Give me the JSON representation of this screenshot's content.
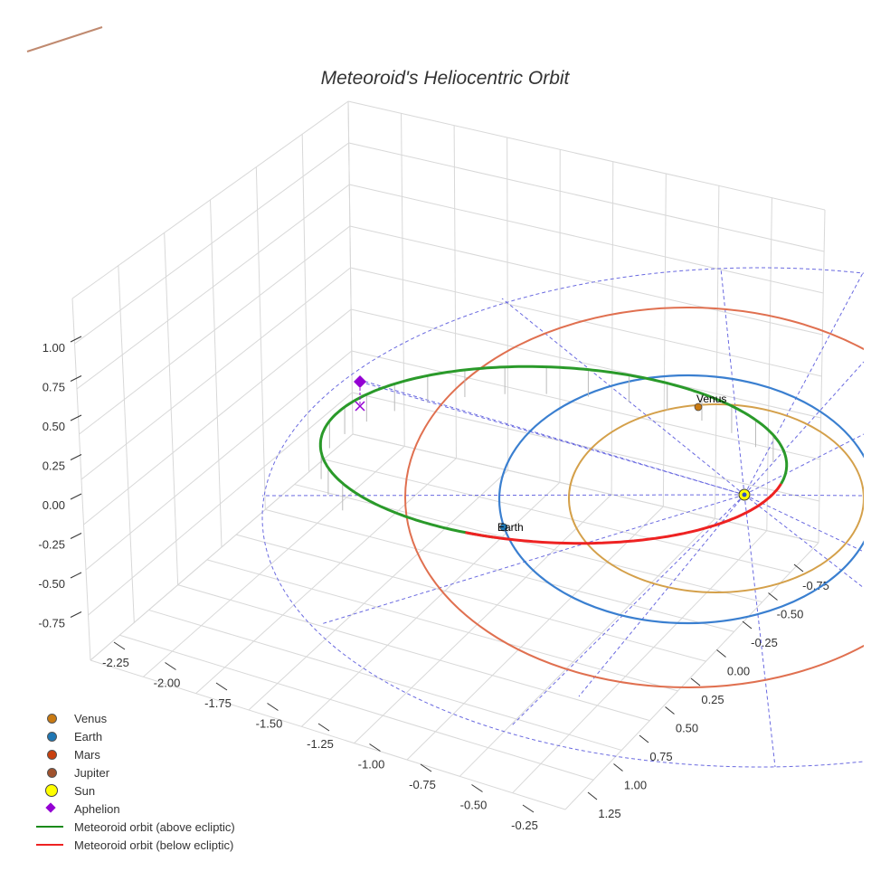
{
  "chart_data": {
    "type": "scatter3d",
    "title": "Meteoroid's Heliocentric Orbit",
    "axes": {
      "x_ticks": [
        "-2.25",
        "-2.00",
        "-1.75",
        "-1.50",
        "-1.25",
        "-1.00",
        "-0.75",
        "-0.50",
        "-0.25"
      ],
      "y_ticks": [
        "-0.75",
        "-0.50",
        "-0.25",
        "0.00",
        "0.25",
        "0.50",
        "0.75",
        "1.00",
        "1.25"
      ],
      "z_ticks": [
        "1.00",
        "0.75",
        "0.50",
        "0.25",
        "0.00",
        "-0.25",
        "-0.50",
        "-0.75"
      ]
    },
    "grid": true,
    "legend_placement": "bottom-left",
    "legend": [
      {
        "label": "Venus",
        "symbol": "circle",
        "color": "#c97a12"
      },
      {
        "label": "Earth",
        "symbol": "circle",
        "color": "#1f77b4"
      },
      {
        "label": "Mars",
        "symbol": "circle",
        "color": "#c8400e"
      },
      {
        "label": "Jupiter",
        "symbol": "circle",
        "color": "#a0522d"
      },
      {
        "label": "Sun",
        "symbol": "circle-large",
        "color": "#ffff00"
      },
      {
        "label": "Aphelion",
        "symbol": "diamond",
        "color": "#9400d3"
      },
      {
        "label": "Meteoroid orbit (above ecliptic)",
        "symbol": "line",
        "color": "#1a8a1a"
      },
      {
        "label": "Meteoroid orbit (below ecliptic)",
        "symbol": "line",
        "color": "#ee2222"
      }
    ],
    "annotations": [
      "Venus",
      "Earth"
    ],
    "orbits": {
      "venus_color": "#d4a04a",
      "earth_color": "#3a7fd0",
      "mars_color": "#e07050",
      "jupiter_color": "#c08a70",
      "ecliptic_grid_color": "#6a6ae0"
    }
  }
}
